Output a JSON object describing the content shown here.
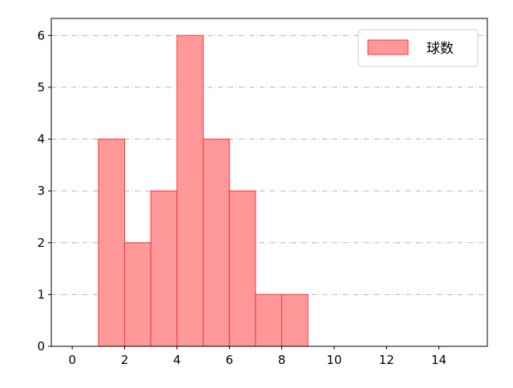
{
  "chart_data": {
    "type": "bar",
    "histogram": true,
    "bins": [
      [
        1,
        2
      ],
      [
        2,
        3
      ],
      [
        3,
        4
      ],
      [
        4,
        5
      ],
      [
        5,
        6
      ],
      [
        6,
        7
      ],
      [
        7,
        8
      ],
      [
        8,
        9
      ]
    ],
    "values": [
      4,
      2,
      3,
      6,
      4,
      3,
      1,
      1
    ],
    "title": "",
    "xlabel": "",
    "ylabel": "",
    "xlim": [
      -0.8,
      15.85
    ],
    "ylim": [
      0,
      6.33
    ],
    "x_ticks": [
      "0",
      "2",
      "4",
      "6",
      "8",
      "10",
      "12",
      "14"
    ],
    "y_ticks": [
      "0",
      "1",
      "2",
      "3",
      "4",
      "5",
      "6"
    ],
    "grid": "y, dash-dot",
    "legend": {
      "position": "top-right",
      "entries": [
        "球数"
      ]
    },
    "series": [
      {
        "name": "球数",
        "values": [
          4,
          2,
          3,
          6,
          4,
          3,
          1,
          1
        ]
      }
    ],
    "colors": {
      "bar_fill": "#ff9999",
      "bar_edge": "#ff3333",
      "grid": "#b0b0b0"
    }
  }
}
